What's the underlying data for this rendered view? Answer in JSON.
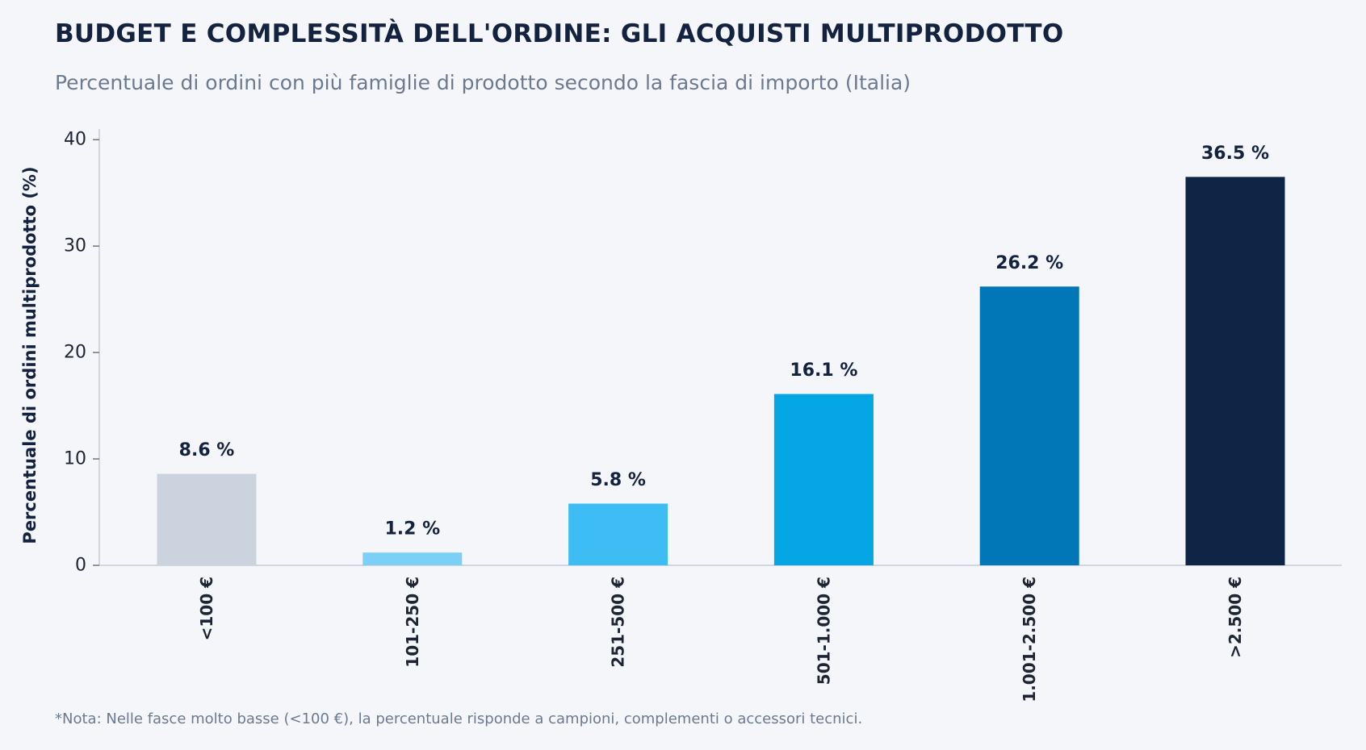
{
  "chart_data": {
    "type": "bar",
    "title": "BUDGET E COMPLESSITÀ DELL'ORDINE: GLI ACQUISTI MULTIPRODOTTO",
    "subtitle": "Percentuale di ordini con più famiglie di prodotto secondo la fascia di importo (Italia)",
    "xlabel": "",
    "ylabel": "Percentuale di ordini multiprodotto (%)",
    "categories": [
      "<100 €",
      "101-250 €",
      "251-500 €",
      "501-1.000 €",
      "1.001-2.500 €",
      ">2.500 €"
    ],
    "values": [
      8.6,
      1.2,
      5.8,
      16.1,
      26.2,
      36.5
    ],
    "value_labels": [
      "8.6 %",
      "1.2 %",
      "5.8 %",
      "16.1 %",
      "26.2 %",
      "36.5 %"
    ],
    "bar_colors": [
      "#cbd3df",
      "#7ccff7",
      "#3dbdf3",
      "#05a6e4",
      "#0277b8",
      "#0e2545"
    ],
    "ylim": [
      0,
      41
    ],
    "yticks": [
      0,
      10,
      20,
      30,
      40
    ],
    "grid": false,
    "legend": "none",
    "note": "*Nota: Nelle fasce molto basse (<100 €), la percentuale risponde a campioni, complementi o accessori tecnici."
  }
}
